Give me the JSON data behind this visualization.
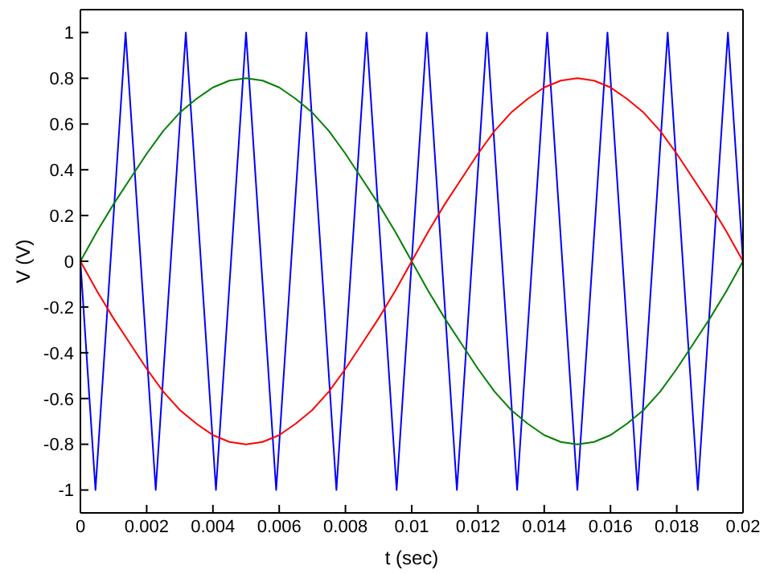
{
  "chart_data": {
    "type": "line",
    "xlabel": "t (sec)",
    "ylabel": "V (V)",
    "xlim": [
      0,
      0.02
    ],
    "ylim": [
      -1.1,
      1.1
    ],
    "xticks": [
      0,
      0.002,
      0.004,
      0.006,
      0.008,
      0.01,
      0.012,
      0.014,
      0.016,
      0.018,
      0.02
    ],
    "yticks": [
      -1,
      -0.8,
      -0.6,
      -0.4,
      -0.2,
      0,
      0.2,
      0.4,
      0.6,
      0.8,
      1
    ],
    "legend": false,
    "marker": "none",
    "line_style": "solid",
    "series": [
      {
        "color": "#0000ff",
        "x": [
          0,
          0.000455,
          0.001364,
          0.002273,
          0.003182,
          0.004091,
          0.005,
          0.005909,
          0.006818,
          0.007727,
          0.008636,
          0.009545,
          0.010455,
          0.011364,
          0.012273,
          0.013182,
          0.014091,
          0.015,
          0.015909,
          0.016818,
          0.017727,
          0.018636,
          0.019545,
          0.02
        ],
        "values": [
          0,
          -1,
          1,
          -1,
          1,
          -1,
          1,
          -1,
          1,
          -1,
          1,
          -1,
          1,
          -1,
          1,
          -1,
          1,
          -1,
          1,
          -1,
          1,
          -1,
          1,
          0
        ]
      },
      {
        "color": "#008000",
        "x": [
          0,
          0.0005,
          0.001,
          0.0015,
          0.002,
          0.0025,
          0.003,
          0.0035,
          0.004,
          0.0045,
          0.005,
          0.0055,
          0.006,
          0.0065,
          0.007,
          0.0075,
          0.008,
          0.0085,
          0.009,
          0.0095,
          0.01,
          0.0105,
          0.011,
          0.0115,
          0.012,
          0.0125,
          0.013,
          0.0135,
          0.014,
          0.0145,
          0.015,
          0.0155,
          0.016,
          0.0165,
          0.017,
          0.0175,
          0.018,
          0.0185,
          0.019,
          0.0195,
          0.02
        ],
        "values": [
          0,
          0.13,
          0.25,
          0.36,
          0.47,
          0.57,
          0.65,
          0.71,
          0.76,
          0.79,
          0.8,
          0.79,
          0.76,
          0.71,
          0.65,
          0.57,
          0.47,
          0.36,
          0.25,
          0.13,
          0,
          -0.13,
          -0.25,
          -0.36,
          -0.47,
          -0.57,
          -0.65,
          -0.71,
          -0.76,
          -0.79,
          -0.8,
          -0.79,
          -0.76,
          -0.71,
          -0.65,
          -0.57,
          -0.47,
          -0.36,
          -0.25,
          -0.13,
          0
        ]
      },
      {
        "color": "#ff0000",
        "x": [
          0,
          0.0005,
          0.001,
          0.0015,
          0.002,
          0.0025,
          0.003,
          0.0035,
          0.004,
          0.0045,
          0.005,
          0.0055,
          0.006,
          0.0065,
          0.007,
          0.0075,
          0.008,
          0.0085,
          0.009,
          0.0095,
          0.01,
          0.0105,
          0.011,
          0.0115,
          0.012,
          0.0125,
          0.013,
          0.0135,
          0.014,
          0.0145,
          0.015,
          0.0155,
          0.016,
          0.0165,
          0.017,
          0.0175,
          0.018,
          0.0185,
          0.019,
          0.0195,
          0.02
        ],
        "values": [
          0,
          -0.13,
          -0.25,
          -0.36,
          -0.47,
          -0.57,
          -0.65,
          -0.71,
          -0.76,
          -0.79,
          -0.8,
          -0.79,
          -0.76,
          -0.71,
          -0.65,
          -0.57,
          -0.47,
          -0.36,
          -0.25,
          -0.13,
          0,
          0.13,
          0.25,
          0.36,
          0.47,
          0.57,
          0.65,
          0.71,
          0.76,
          0.79,
          0.8,
          0.79,
          0.76,
          0.71,
          0.65,
          0.57,
          0.47,
          0.36,
          0.25,
          0.13,
          0
        ]
      }
    ]
  }
}
